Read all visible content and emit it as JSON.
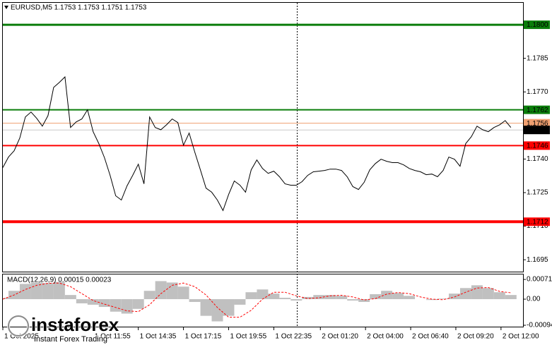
{
  "chart_data": [
    {
      "type": "line",
      "title": "EURUSD,M5  1.1753 1.1753 1.1751 1.1753",
      "watermark": "instaforex",
      "watermark_tagline": "Instant Forex Trading",
      "color": "#000000",
      "x": [
        395,
        415,
        435,
        455,
        475,
        495,
        515,
        535,
        555,
        575,
        595,
        615,
        635,
        655,
        675,
        695,
        715,
        735,
        755,
        775,
        795,
        815,
        835,
        855,
        875,
        895,
        915,
        935,
        955,
        975,
        995,
        1015,
        1035,
        1055,
        1075,
        1095,
        1115,
        1135,
        1155,
        1175,
        1195,
        1215,
        1235,
        1255,
        1275,
        1295,
        1315,
        1335,
        1355,
        1375,
        1395,
        1415,
        1435,
        1455,
        1475,
        1495,
        1515,
        1535,
        1555,
        1575,
        1595,
        1615,
        1635,
        1655,
        1675,
        1695,
        1715,
        1735,
        1755,
        1775,
        1795,
        1815,
        1835,
        1855,
        1875,
        1895,
        1915,
        1935,
        1955,
        1975,
        1995,
        2015,
        2035,
        2055,
        2075,
        2095,
        2115,
        2135,
        2155,
        2175,
        2195
      ],
      "values": [
        1.17362,
        1.17409,
        1.17437,
        1.17494,
        1.17588,
        1.1761,
        1.17582,
        1.17547,
        1.17594,
        1.1772,
        1.17742,
        1.17767,
        1.17541,
        1.17566,
        1.17579,
        1.1762,
        1.17522,
        1.17469,
        1.17406,
        1.17327,
        1.17236,
        1.17217,
        1.1728,
        1.17327,
        1.17377,
        1.17289,
        1.17588,
        1.17541,
        1.17531,
        1.17553,
        1.17579,
        1.17563,
        1.17462,
        1.17516,
        1.17431,
        1.17352,
        1.1727,
        1.17252,
        1.17217,
        1.1717,
        1.17242,
        1.17302,
        1.17283,
        1.17252,
        1.17352,
        1.17396,
        1.17358,
        1.17336,
        1.17346,
        1.17321,
        1.17289,
        1.17283,
        1.17283,
        1.17299,
        1.17327,
        1.17343,
        1.17346,
        1.17349,
        1.17355,
        1.17355,
        1.17349,
        1.17321,
        1.17277,
        1.17264,
        1.17296,
        1.17352,
        1.1738,
        1.17399,
        1.1739,
        1.17384,
        1.17384,
        1.17374,
        1.17358,
        1.17349,
        1.17343,
        1.1733,
        1.17333,
        1.17321,
        1.17349,
        1.17409,
        1.17399,
        1.17368,
        1.17469,
        1.175,
        1.17547,
        1.17531,
        1.17522,
        1.17541,
        1.17553,
        1.17572,
        1.17541
      ],
      "xlim": [
        395,
        2238
      ],
      "xticks": [
        {
          "value": 395,
          "label": "1 Oct 2025"
        },
        {
          "value": 715,
          "label": "1 Oct 11:55"
        },
        {
          "value": 875,
          "label": "1 Oct 14:35"
        },
        {
          "value": 1035,
          "label": "1 Oct 17:15"
        },
        {
          "value": 1195,
          "label": "1 Oct 19:55"
        },
        {
          "value": 1355,
          "label": "1 Oct 22:35"
        },
        {
          "value": 1520,
          "label": "2 Oct 01:20"
        },
        {
          "value": 1680,
          "label": "2 Oct 04:00"
        },
        {
          "value": 1840,
          "label": "2 Oct 06:40"
        },
        {
          "value": 2000,
          "label": "2 Oct 09:20"
        },
        {
          "value": 2160,
          "label": "2 Oct 12:00"
        }
      ],
      "ylim": [
        1.16897,
        1.18098
      ],
      "yticks": [
        {
          "value": 1.1785,
          "label": "1.1785"
        },
        {
          "value": 1.177,
          "label": "1.1770"
        },
        {
          "value": 1.174,
          "label": "1.1740"
        },
        {
          "value": 1.1725,
          "label": "1.1725"
        },
        {
          "value": 1.171,
          "label": "1.1710"
        },
        {
          "value": 1.1695,
          "label": "1.1695"
        }
      ],
      "levels": [
        {
          "value": 1.18,
          "label": "1.1800",
          "color": "#0a7d0a",
          "line_color": "#0a7d0a",
          "width": 3
        },
        {
          "value": 1.1762,
          "label": "1.1762",
          "color": "#0a7d0a",
          "line_color": "#0a7d0a",
          "width": 2
        },
        {
          "value": 1.1756,
          "label": "1.1756",
          "color": "#f0a070",
          "line_color": "#f0a070",
          "width": 1
        },
        {
          "value": 1.1753,
          "label": "1.1753",
          "color": "#000000",
          "line_color": "#c8c8c8",
          "width": 1
        },
        {
          "value": 1.1746,
          "label": "1.1746",
          "color": "#ff0000",
          "line_color": "#ff0000",
          "width": 2
        },
        {
          "value": 1.1712,
          "label": "1.1712",
          "color": "#ff0000",
          "line_color": "#ff0000",
          "width": 4
        }
      ]
    },
    {
      "type": "macd",
      "title": "MACD(12,26,9) 0.00015 0.00023",
      "x": [
        395,
        435,
        475,
        515,
        555,
        595,
        635,
        675,
        715,
        755,
        795,
        835,
        875,
        915,
        955,
        995,
        1035,
        1075,
        1115,
        1155,
        1195,
        1235,
        1275,
        1315,
        1355,
        1395,
        1435,
        1475,
        1515,
        1555,
        1595,
        1635,
        1675,
        1715,
        1755,
        1795,
        1835,
        1875,
        1915,
        1955,
        1995,
        2035,
        2075,
        2115,
        2155,
        2195
      ],
      "histogram": {
        "color": "#c0c0c0",
        "values": [
          5e-05,
          0.0003,
          0.00055,
          0.0006,
          0.00058,
          0.00062,
          0.00015,
          -0.00015,
          -0.0002,
          -0.00028,
          -0.00045,
          -0.00052,
          -0.00035,
          0.0003,
          0.00065,
          0.0006,
          0.00045,
          -0.0001,
          -0.0006,
          -0.0008,
          -0.0006,
          -0.0002,
          0.00025,
          0.00035,
          0.0002,
          5e-05,
          -5e-05,
          8e-05,
          0.00015,
          0.00015,
          0.00012,
          -5e-05,
          -0.0001,
          0.00018,
          0.0003,
          0.00022,
          0.00012,
          0,
          -3e-05,
          2e-05,
          0.0002,
          0.0004,
          0.0005,
          0.0004,
          0.00025,
          0.00015
        ]
      },
      "signal": {
        "color": "#ff0000",
        "values": [
          0,
          0.00015,
          0.00035,
          0.0005,
          0.00057,
          0.00058,
          0.00045,
          0.0002,
          -5e-05,
          -0.00018,
          -0.0003,
          -0.00042,
          -0.00045,
          -0.0002,
          0.0002,
          0.0005,
          0.00058,
          0.00045,
          0.00015,
          -0.0003,
          -0.00065,
          -0.00065,
          -0.0004,
          0,
          0.00025,
          0.00025,
          0.00012,
          2e-05,
          5e-05,
          0.00012,
          0.00014,
          8e-05,
          -3e-05,
          2e-05,
          0.00018,
          0.00024,
          0.0002,
          8e-05,
          0,
          -2e-05,
          8e-05,
          0.00025,
          0.0004,
          0.00042,
          0.00028,
          0.00023
        ]
      },
      "xlim": [
        395,
        2238
      ],
      "ylim": [
        -0.00099,
        0.00089
      ],
      "yticks": [
        {
          "value": 0.00071,
          "label": "0.00071"
        },
        {
          "value": 0,
          "label": "0.00"
        },
        {
          "value": -0.00094,
          "label": "-0.00094"
        }
      ]
    }
  ]
}
